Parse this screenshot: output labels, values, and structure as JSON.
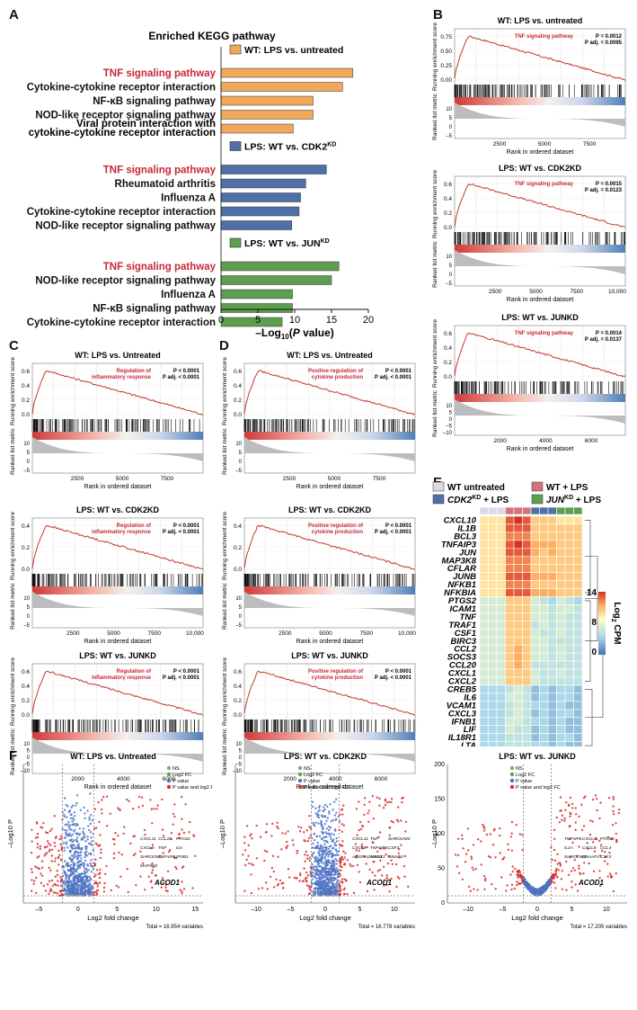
{
  "panels": {
    "A": "A",
    "B": "B",
    "C": "C",
    "D": "D",
    "E": "E",
    "F": "F"
  },
  "panelA": {
    "title": "Enriched KEGG pathway",
    "xlabel": "–Log10(P value)",
    "xticks": [
      "0",
      "5",
      "10",
      "15",
      "20"
    ],
    "colors": {
      "wt_lps": "#f0a85a",
      "cdk2": "#4f6fa8",
      "jun": "#5e9e4e",
      "tnf": "#c8283a"
    },
    "groups": [
      {
        "legend": "WT: LPS vs. untreated",
        "color": "#f0a85a",
        "bars": [
          {
            "label": "TNF signaling pathway",
            "value": 17.9,
            "highlight": true
          },
          {
            "label": "Cytokine-cytokine receptor interaction",
            "value": 16.5,
            "highlight": false
          },
          {
            "label": "NF-κB signaling pathway",
            "value": 12.5,
            "highlight": false
          },
          {
            "label": "NOD-like receptor signaling pathway",
            "value": 12.5,
            "highlight": false
          },
          {
            "label": "Viral protein interaction with cytokine-cytokine receptor interaction",
            "value": 9.8,
            "highlight": false
          }
        ]
      },
      {
        "legend": "LPS: WT vs. CDK2KD",
        "color": "#4f6fa8",
        "bars": [
          {
            "label": "TNF signaling pathway",
            "value": 14.3,
            "highlight": true
          },
          {
            "label": "Rheumatoid arthritis",
            "value": 11.5,
            "highlight": false
          },
          {
            "label": "Influenza A",
            "value": 10.8,
            "highlight": false
          },
          {
            "label": "Cytokine-cytokine receptor interaction",
            "value": 10.6,
            "highlight": false
          },
          {
            "label": "NOD-like receptor signaling pathway",
            "value": 9.6,
            "highlight": false
          }
        ]
      },
      {
        "legend": "LPS: WT vs. JUNKD",
        "color": "#5e9e4e",
        "bars": [
          {
            "label": "TNF signaling pathway",
            "value": 16.0,
            "highlight": true
          },
          {
            "label": "NOD-like receptor signaling pathway",
            "value": 15.0,
            "highlight": false
          },
          {
            "label": "Influenza A",
            "value": 9.7,
            "highlight": false
          },
          {
            "label": "NF-κB signaling pathway",
            "value": 9.7,
            "highlight": false
          },
          {
            "label": "Cytokine-cytokine receptor interaction",
            "value": 8.3,
            "highlight": false
          }
        ]
      }
    ]
  },
  "gsea": {
    "y_label_top": "Running enrichment score",
    "y_label_bottom": "Ranked list metric",
    "x_label": "Rank in ordered dataset",
    "B": [
      {
        "title": "WT: LPS vs. untreated",
        "pathway": "TNF signaling pathway",
        "p": "P = 0.0012",
        "padj": "P adj. = 0.0095",
        "yticks": [
          "0.75",
          "0.50",
          "0.25",
          "0.00"
        ],
        "xticks": [
          "2500",
          "5000",
          "7500"
        ],
        "mticks": [
          "10",
          "5",
          "0",
          "–5"
        ],
        "peak": 0.8,
        "n": 9500
      },
      {
        "title": "LPS: WT vs. CDK2KD",
        "pathway": "TNF signaling pathway",
        "p": "P = 0.0015",
        "padj": "P adj. = 0.0123",
        "yticks": [
          "0.6",
          "0.4",
          "0.2",
          "0.0"
        ],
        "xticks": [
          "2500",
          "5000",
          "7500",
          "10,000"
        ],
        "mticks": [
          "10",
          "5",
          "0",
          "–5"
        ],
        "peak": 0.7,
        "n": 10500
      },
      {
        "title": "LPS: WT vs. JUNKD",
        "pathway": "TNF signaling pathway",
        "p": "P = 0.0014",
        "padj": "P adj. = 0.0137",
        "yticks": [
          "0.6",
          "0.4",
          "0.2",
          "0.0"
        ],
        "xticks": [
          "2000",
          "4000",
          "6000"
        ],
        "mticks": [
          "10",
          "5",
          "0",
          "–5",
          "–10"
        ],
        "peak": 0.7,
        "n": 7500
      }
    ],
    "C": [
      {
        "title": "WT: LPS vs. Untreated",
        "pathway": "Regulation of inflammatory response",
        "p": "P < 0.0001",
        "padj": "P adj. < 0.0001",
        "yticks": [
          "0.6",
          "0.4",
          "0.2",
          "0.0"
        ],
        "xticks": [
          "2500",
          "5000",
          "7500"
        ],
        "mticks": [
          "10",
          "5",
          "0",
          "–5"
        ],
        "peak": 0.7,
        "n": 9500
      },
      {
        "title": "LPS: WT vs. CDK2KD",
        "pathway": "Regulation of inflammatory response",
        "p": "P < 0.0001",
        "padj": "P adj. < 0.0001",
        "yticks": [
          "0.4",
          "0.2",
          "0.0"
        ],
        "xticks": [
          "2500",
          "5000",
          "7500",
          "10,000"
        ],
        "mticks": [
          "10",
          "5",
          "0",
          "–5"
        ],
        "peak": 0.48,
        "n": 10500
      },
      {
        "title": "LPS: WT vs. JUNKD",
        "pathway": "Regulation of inflammatory response",
        "p": "P < 0.0001",
        "padj": "P adj. < 0.0001",
        "yticks": [
          "0.6",
          "0.4",
          "0.2",
          "0.0"
        ],
        "xticks": [
          "2000",
          "4000",
          "6000"
        ],
        "mticks": [
          "10",
          "5",
          "0",
          "–5",
          "–10"
        ],
        "peak": 0.6,
        "n": 7500
      }
    ],
    "D": [
      {
        "title": "WT: LPS vs. Untreated",
        "pathway": "Positive regulation of cytokine production",
        "p": "P < 0.0001",
        "padj": "P adj. < 0.0001",
        "yticks": [
          "0.6",
          "0.4",
          "0.2",
          "0.0"
        ],
        "xticks": [
          "2500",
          "5000",
          "7500"
        ],
        "mticks": [
          "10",
          "5",
          "0",
          "–5"
        ],
        "peak": 0.65,
        "n": 9500
      },
      {
        "title": "LPS: WT vs. CDK2KD",
        "pathway": "Positive regulation of cytokine production",
        "p": "P < 0.0001",
        "padj": "P adj. < 0.0001",
        "yticks": [
          "0.4",
          "0.2",
          "0.0"
        ],
        "xticks": [
          "2500",
          "5000",
          "7500",
          "10,000"
        ],
        "mticks": [
          "10",
          "5",
          "0",
          "–5"
        ],
        "peak": 0.5,
        "n": 10500
      },
      {
        "title": "LPS: WT vs. JUNKD",
        "pathway": "Positive regulation of cytokine production",
        "p": "P < 0.0001",
        "padj": "P adj. < 0.0001",
        "yticks": [
          "0.6",
          "0.4",
          "0.2",
          "0.0"
        ],
        "xticks": [
          "2000",
          "4000",
          "6000"
        ],
        "mticks": [
          "10",
          "5",
          "0",
          "–5",
          "–10"
        ],
        "peak": 0.6,
        "n": 7500
      }
    ]
  },
  "heatmap": {
    "legend": [
      {
        "label": "WT untreated",
        "color": "#ddd8e3"
      },
      {
        "label": "WT + LPS",
        "color": "#d4737c"
      },
      {
        "label": "CDK2KD + LPS",
        "color": "#4f6fa8"
      },
      {
        "label": "JUNKD + LPS",
        "color": "#5e9e4e"
      }
    ],
    "scale_label": "Log2 CPM",
    "scale_ticks": [
      "14",
      "8",
      "0"
    ],
    "genes": [
      "CXCL10",
      "IL1B",
      "BCL3",
      "TNFAIP3",
      "JUN",
      "MAP3K8",
      "CFLAR",
      "JUNB",
      "NFKB1",
      "NFKBIA",
      "PTGS2",
      "ICAM1",
      "TNF",
      "TRAF1",
      "CSF1",
      "BIRC3",
      "CCL2",
      "SOCS3",
      "CCL20",
      "CXCL1",
      "CXCL2",
      "CREB5",
      "IL6",
      "VCAM1",
      "CXCL3",
      "IFNB1",
      "LIF",
      "IL18R1",
      "LTA"
    ],
    "values": [
      [
        9,
        9,
        9,
        13,
        14,
        13,
        10,
        10,
        10,
        9,
        9,
        9
      ],
      [
        9,
        9,
        9,
        13,
        13,
        13,
        10,
        10,
        10,
        10,
        10,
        10
      ],
      [
        9,
        9,
        9,
        12,
        12,
        12,
        10,
        10,
        10,
        10,
        10,
        10
      ],
      [
        9,
        9,
        9,
        13,
        14,
        13,
        11,
        11,
        11,
        10,
        10,
        10
      ],
      [
        9,
        9,
        9,
        13,
        13,
        13,
        11,
        10,
        11,
        10,
        10,
        10
      ],
      [
        9,
        9,
        9,
        12,
        12,
        12,
        10,
        10,
        10,
        10,
        10,
        10
      ],
      [
        9,
        9,
        9,
        12,
        12,
        12,
        10,
        10,
        10,
        10,
        10,
        10
      ],
      [
        9,
        9,
        9,
        13,
        13,
        13,
        11,
        11,
        11,
        10,
        10,
        10
      ],
      [
        9,
        9,
        9,
        12,
        12,
        12,
        10,
        10,
        10,
        10,
        10,
        10
      ],
      [
        9,
        9,
        9,
        13,
        13,
        13,
        11,
        11,
        11,
        10,
        10,
        10
      ],
      [
        6,
        6,
        6,
        10,
        10,
        10,
        6,
        5,
        4,
        6,
        5,
        4
      ],
      [
        6,
        6,
        6,
        10,
        10,
        10,
        6,
        6,
        5,
        6,
        6,
        5
      ],
      [
        6,
        6,
        6,
        10,
        10,
        10,
        6,
        6,
        5,
        6,
        5,
        5
      ],
      [
        6,
        6,
        6,
        10,
        10,
        10,
        5,
        6,
        5,
        6,
        5,
        5
      ],
      [
        6,
        6,
        6,
        10,
        10,
        10,
        6,
        5,
        5,
        6,
        5,
        5
      ],
      [
        6,
        6,
        6,
        10,
        10,
        10,
        6,
        6,
        5,
        5,
        5,
        5
      ],
      [
        6,
        6,
        6,
        10,
        11,
        10,
        6,
        6,
        5,
        6,
        5,
        5
      ],
      [
        6,
        6,
        6,
        10,
        11,
        10,
        6,
        6,
        5,
        6,
        5,
        5
      ],
      [
        6,
        6,
        6,
        10,
        11,
        10,
        5,
        5,
        5,
        5,
        5,
        5
      ],
      [
        6,
        6,
        6,
        10,
        10,
        10,
        6,
        5,
        5,
        6,
        5,
        5
      ],
      [
        6,
        6,
        6,
        10,
        10,
        10,
        6,
        5,
        5,
        5,
        5,
        5
      ],
      [
        4,
        4,
        4,
        5,
        6,
        5,
        3,
        4,
        3,
        4,
        4,
        3
      ],
      [
        4,
        4,
        4,
        6,
        6,
        5,
        3,
        4,
        3,
        4,
        4,
        3
      ],
      [
        4,
        4,
        4,
        5,
        6,
        5,
        4,
        4,
        3,
        4,
        3,
        3
      ],
      [
        4,
        4,
        4,
        5,
        6,
        5,
        3,
        4,
        3,
        4,
        4,
        3
      ],
      [
        4,
        4,
        4,
        6,
        6,
        5,
        4,
        4,
        3,
        4,
        3,
        3
      ],
      [
        4,
        4,
        4,
        6,
        5,
        5,
        3,
        4,
        3,
        4,
        3,
        3
      ],
      [
        4,
        4,
        4,
        5,
        5,
        5,
        3,
        4,
        3,
        4,
        4,
        3
      ],
      [
        4,
        4,
        4,
        5,
        5,
        5,
        4,
        4,
        3,
        4,
        3,
        3
      ]
    ]
  },
  "volcano": {
    "legend": [
      "NS",
      "Log2 FC",
      "P value",
      "P value and log2 FC"
    ],
    "legend_colors": [
      "#999999",
      "#5ea34e",
      "#4f73c4",
      "#d92b2b"
    ],
    "ylabel": "–Log10 P",
    "xlabel": "Log2 fold change",
    "plots": [
      {
        "title": "WT: LPS vs. Untreated",
        "total": "Total = 16,954 variables",
        "xticks": [
          "–5",
          "0",
          "5",
          "10",
          "15"
        ],
        "yticks": [],
        "highlight": "ACOD1",
        "labels": [
          "CXCL11",
          "CCL20",
          "PTGS2",
          "CXCL9",
          "TNF",
          "IL6",
          "SHROOM3",
          "TNFAIP6",
          "IFNB1",
          "MAP3K8"
        ]
      },
      {
        "title": "LPS: WT vs. CDK2KD",
        "total": "Total = 16,778 variables",
        "xticks": [
          "–10",
          "–5",
          "0",
          "5",
          "10"
        ],
        "yticks": [],
        "highlight": "ACOD1",
        "labels": [
          "CXCL11",
          "TNF",
          "SHROOM3",
          "CXCL9",
          "TNFAIP6",
          "CSF3",
          "ADORA2A-AS1",
          "MEOX1",
          "SMAD3"
        ]
      },
      {
        "title": "LPS: WT vs. JUNKD",
        "total": "Total = 17,205 variables",
        "xticks": [
          "–10",
          "–5",
          "0",
          "5",
          "10"
        ],
        "yticks": [
          "0",
          "50",
          "100",
          "150",
          "200"
        ],
        "highlight": "ACOD1",
        "labels": [
          "TNFAIP6",
          "CXCL11",
          "PTGS2",
          "IL1A",
          "CXCL8",
          "CCL4",
          "SHROOM3",
          "DNAAF1",
          "CSF3"
        ]
      }
    ]
  }
}
